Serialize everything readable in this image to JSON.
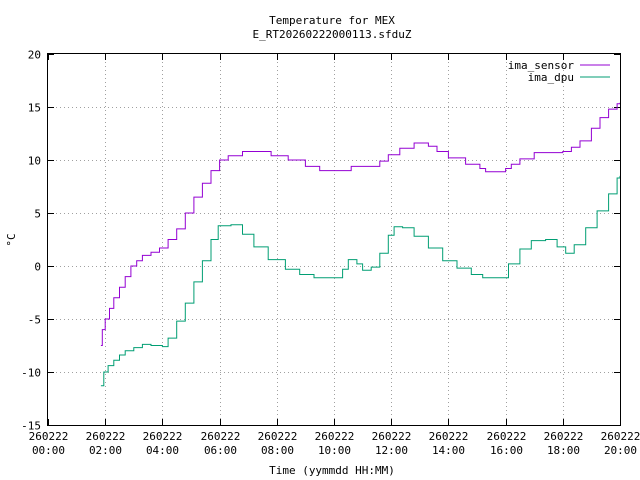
{
  "chart_data": {
    "type": "line",
    "title": "Temperature for MEX",
    "subtitle": "E_RT20260222000113.sfduZ",
    "xlabel": "Time (yymmdd HH:MM)",
    "ylabel": "°C",
    "xlim": [
      0,
      20
    ],
    "ylim": [
      -15,
      20
    ],
    "grid": true,
    "legend_position": "top-right",
    "x_ticks": [
      {
        "v": 0,
        "l1": "260222",
        "l2": "00:00"
      },
      {
        "v": 2,
        "l1": "260222",
        "l2": "02:00"
      },
      {
        "v": 4,
        "l1": "260222",
        "l2": "04:00"
      },
      {
        "v": 6,
        "l1": "260222",
        "l2": "06:00"
      },
      {
        "v": 8,
        "l1": "260222",
        "l2": "08:00"
      },
      {
        "v": 10,
        "l1": "260222",
        "l2": "10:00"
      },
      {
        "v": 12,
        "l1": "260222",
        "l2": "12:00"
      },
      {
        "v": 14,
        "l1": "260222",
        "l2": "14:00"
      },
      {
        "v": 16,
        "l1": "260222",
        "l2": "16:00"
      },
      {
        "v": 18,
        "l1": "260222",
        "l2": "18:00"
      },
      {
        "v": 20,
        "l1": "260222",
        "l2": "20:00"
      }
    ],
    "y_ticks": [
      -15,
      -10,
      -5,
      0,
      5,
      10,
      15,
      20
    ],
    "series": [
      {
        "name": "ima_sensor",
        "color": "#9400d3",
        "points": [
          [
            1.85,
            -7.5
          ],
          [
            1.9,
            -6.0
          ],
          [
            2.0,
            -5.0
          ],
          [
            2.15,
            -4.0
          ],
          [
            2.3,
            -3.0
          ],
          [
            2.5,
            -2.0
          ],
          [
            2.7,
            -1.0
          ],
          [
            2.9,
            0.0
          ],
          [
            3.1,
            0.5
          ],
          [
            3.3,
            1.0
          ],
          [
            3.6,
            1.3
          ],
          [
            3.9,
            1.7
          ],
          [
            4.2,
            2.5
          ],
          [
            4.5,
            3.5
          ],
          [
            4.8,
            5.0
          ],
          [
            5.1,
            6.5
          ],
          [
            5.4,
            7.8
          ],
          [
            5.7,
            9.0
          ],
          [
            6.0,
            10.0
          ],
          [
            6.3,
            10.4
          ],
          [
            6.8,
            10.8
          ],
          [
            7.7,
            10.8
          ],
          [
            7.8,
            10.4
          ],
          [
            8.4,
            10.0
          ],
          [
            9.0,
            9.4
          ],
          [
            9.5,
            9.0
          ],
          [
            10.5,
            9.0
          ],
          [
            10.6,
            9.4
          ],
          [
            11.4,
            9.4
          ],
          [
            11.6,
            9.9
          ],
          [
            11.9,
            10.5
          ],
          [
            12.3,
            11.1
          ],
          [
            12.8,
            11.6
          ],
          [
            13.3,
            11.3
          ],
          [
            13.6,
            10.8
          ],
          [
            14.0,
            10.2
          ],
          [
            14.6,
            9.6
          ],
          [
            15.1,
            9.2
          ],
          [
            15.3,
            8.9
          ],
          [
            16.0,
            9.2
          ],
          [
            16.2,
            9.6
          ],
          [
            16.5,
            10.1
          ],
          [
            17.0,
            10.7
          ],
          [
            18.0,
            10.8
          ],
          [
            18.3,
            11.2
          ],
          [
            18.6,
            11.8
          ],
          [
            19.0,
            13.0
          ],
          [
            19.3,
            14.0
          ],
          [
            19.6,
            14.8
          ],
          [
            19.9,
            15.3
          ],
          [
            20.0,
            15.4
          ]
        ]
      },
      {
        "name": "ima_dpu",
        "color": "#009e73",
        "points": [
          [
            1.85,
            -11.3
          ],
          [
            1.95,
            -10.0
          ],
          [
            2.1,
            -9.4
          ],
          [
            2.3,
            -8.9
          ],
          [
            2.5,
            -8.4
          ],
          [
            2.7,
            -8.0
          ],
          [
            3.0,
            -7.7
          ],
          [
            3.3,
            -7.4
          ],
          [
            3.6,
            -7.5
          ],
          [
            4.0,
            -7.6
          ],
          [
            4.2,
            -6.8
          ],
          [
            4.5,
            -5.2
          ],
          [
            4.8,
            -3.5
          ],
          [
            5.1,
            -1.5
          ],
          [
            5.4,
            0.5
          ],
          [
            5.7,
            2.5
          ],
          [
            5.95,
            3.8
          ],
          [
            6.4,
            3.9
          ],
          [
            6.8,
            3.0
          ],
          [
            7.2,
            1.8
          ],
          [
            7.7,
            0.6
          ],
          [
            8.3,
            -0.3
          ],
          [
            8.8,
            -0.8
          ],
          [
            9.3,
            -1.1
          ],
          [
            10.0,
            -1.1
          ],
          [
            10.3,
            -0.3
          ],
          [
            10.5,
            0.6
          ],
          [
            10.8,
            0.2
          ],
          [
            11.0,
            -0.4
          ],
          [
            11.3,
            -0.1
          ],
          [
            11.6,
            1.2
          ],
          [
            11.9,
            2.9
          ],
          [
            12.1,
            3.7
          ],
          [
            12.4,
            3.6
          ],
          [
            12.8,
            2.8
          ],
          [
            13.3,
            1.7
          ],
          [
            13.8,
            0.5
          ],
          [
            14.3,
            -0.2
          ],
          [
            14.8,
            -0.8
          ],
          [
            15.2,
            -1.1
          ],
          [
            15.8,
            -1.1
          ],
          [
            16.1,
            0.2
          ],
          [
            16.5,
            1.6
          ],
          [
            16.9,
            2.4
          ],
          [
            17.4,
            2.5
          ],
          [
            17.8,
            1.8
          ],
          [
            18.1,
            1.2
          ],
          [
            18.4,
            2.0
          ],
          [
            18.8,
            3.6
          ],
          [
            19.2,
            5.2
          ],
          [
            19.6,
            6.8
          ],
          [
            19.9,
            8.3
          ],
          [
            20.0,
            8.5
          ]
        ]
      }
    ]
  }
}
